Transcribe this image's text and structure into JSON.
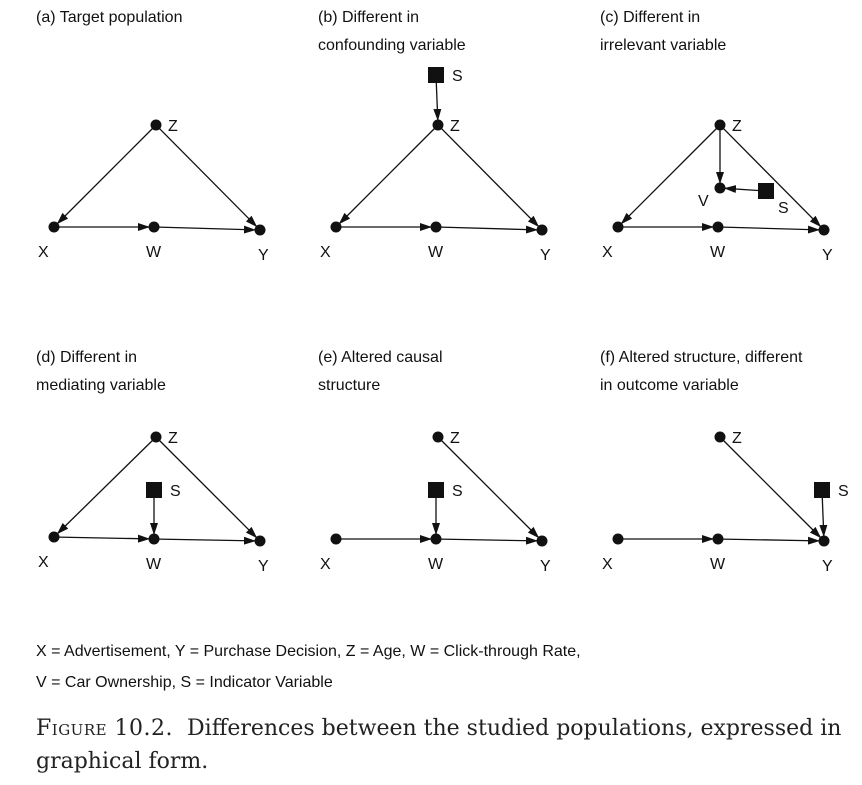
{
  "panels": [
    {
      "title": [
        "(a) Target population"
      ],
      "labels": {
        "X": "X",
        "W": "W",
        "Y": "Y",
        "Z": "Z"
      }
    },
    {
      "title": [
        "(b) Different in",
        "confounding variable"
      ],
      "labels": {
        "X": "X",
        "W": "W",
        "Y": "Y",
        "Z": "Z",
        "S": "S"
      }
    },
    {
      "title": [
        "(c) Different in",
        "irrelevant variable"
      ],
      "labels": {
        "X": "X",
        "W": "W",
        "Y": "Y",
        "Z": "Z",
        "V": "V",
        "S": "S"
      }
    },
    {
      "title": [
        "(d) Different in",
        "mediating variable"
      ],
      "labels": {
        "X": "X",
        "W": "W",
        "Y": "Y",
        "Z": "Z",
        "S": "S"
      }
    },
    {
      "title": [
        "(e) Altered causal",
        "structure"
      ],
      "labels": {
        "X": "X",
        "W": "W",
        "Y": "Y",
        "Z": "Z",
        "S": "S"
      }
    },
    {
      "title": [
        "(f) Altered structure, different",
        "in outcome variable"
      ],
      "labels": {
        "X": "X",
        "W": "W",
        "Y": "Y",
        "Z": "Z",
        "S": "S"
      }
    }
  ],
  "legend": {
    "line1": "X = Advertisement, Y = Purchase Decision, Z = Age, W = Click-through Rate,",
    "line2": "V = Car Ownership, S = Indicator Variable"
  },
  "caption": {
    "label": "Figure 10.2.",
    "line1": "Differences between the studied populations, expressed in",
    "line2": "graphical form."
  },
  "colors": {
    "ink": "#111111",
    "caption": "#222222",
    "background": "#ffffff"
  }
}
